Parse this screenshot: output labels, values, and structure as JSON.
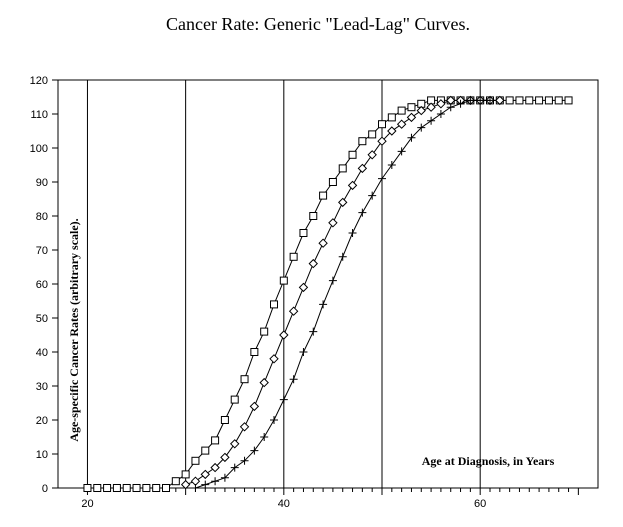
{
  "chart_data": {
    "type": "line",
    "title": "Cancer Rate: Generic \"Lead-Lag\" Curves.",
    "xlabel": "Age at Diagnosis, in Years",
    "ylabel": "Age-specific Cancer Rates (arbitrary scale).",
    "xlim": [
      17,
      72
    ],
    "ylim": [
      0,
      120
    ],
    "x_ticks": [
      "20",
      "40",
      "60"
    ],
    "y_ticks": [
      "0",
      "10",
      "20",
      "30",
      "40",
      "50",
      "60",
      "70",
      "80",
      "90",
      "100",
      "110",
      "120"
    ],
    "vertical_gridlines_at_x": [
      20,
      30,
      40,
      50,
      60
    ],
    "legend": "none",
    "series": [
      {
        "marker": "square",
        "x": [
          20,
          21,
          22,
          23,
          24,
          25,
          26,
          27,
          28,
          29,
          30,
          31,
          32,
          33,
          34,
          35,
          36,
          37,
          38,
          39,
          40,
          41,
          42,
          43,
          44,
          45,
          46,
          47,
          48,
          49,
          50,
          51,
          52,
          53,
          54,
          55,
          56,
          57,
          58,
          59,
          60,
          61,
          62,
          63,
          64,
          65,
          66,
          67,
          68,
          69
        ],
        "y": [
          0,
          0,
          0,
          0,
          0,
          0,
          0,
          0,
          0,
          2,
          4,
          8,
          11,
          14,
          20,
          26,
          32,
          40,
          46,
          54,
          61,
          68,
          75,
          80,
          86,
          90,
          94,
          98,
          102,
          104,
          107,
          109,
          111,
          112,
          113,
          114,
          114,
          114,
          114,
          114,
          114,
          114,
          114,
          114,
          114,
          114,
          114,
          114,
          114,
          114
        ]
      },
      {
        "marker": "diamond",
        "x": [
          30,
          31,
          32,
          33,
          34,
          35,
          36,
          37,
          38,
          39,
          40,
          41,
          42,
          43,
          44,
          45,
          46,
          47,
          48,
          49,
          50,
          51,
          52,
          53,
          54,
          55,
          56,
          57,
          58,
          59,
          60,
          61,
          62
        ],
        "y": [
          1,
          2,
          4,
          6,
          9,
          13,
          18,
          24,
          31,
          38,
          45,
          52,
          59,
          66,
          72,
          78,
          84,
          89,
          94,
          98,
          102,
          105,
          107,
          109,
          111,
          112,
          113,
          114,
          114,
          114,
          114,
          114,
          114
        ]
      },
      {
        "marker": "plus",
        "x": [
          31,
          32,
          33,
          34,
          35,
          36,
          37,
          38,
          39,
          40,
          41,
          42,
          43,
          44,
          45,
          46,
          47,
          48,
          49,
          50,
          51,
          52,
          53,
          54,
          55,
          56,
          57,
          58,
          59,
          60,
          61
        ],
        "y": [
          0,
          1,
          2,
          3,
          6,
          8,
          11,
          15,
          20,
          26,
          32,
          40,
          46,
          54,
          61,
          68,
          75,
          81,
          86,
          91,
          95,
          99,
          103,
          106,
          108,
          110,
          112,
          113,
          114,
          114,
          114
        ]
      }
    ]
  }
}
